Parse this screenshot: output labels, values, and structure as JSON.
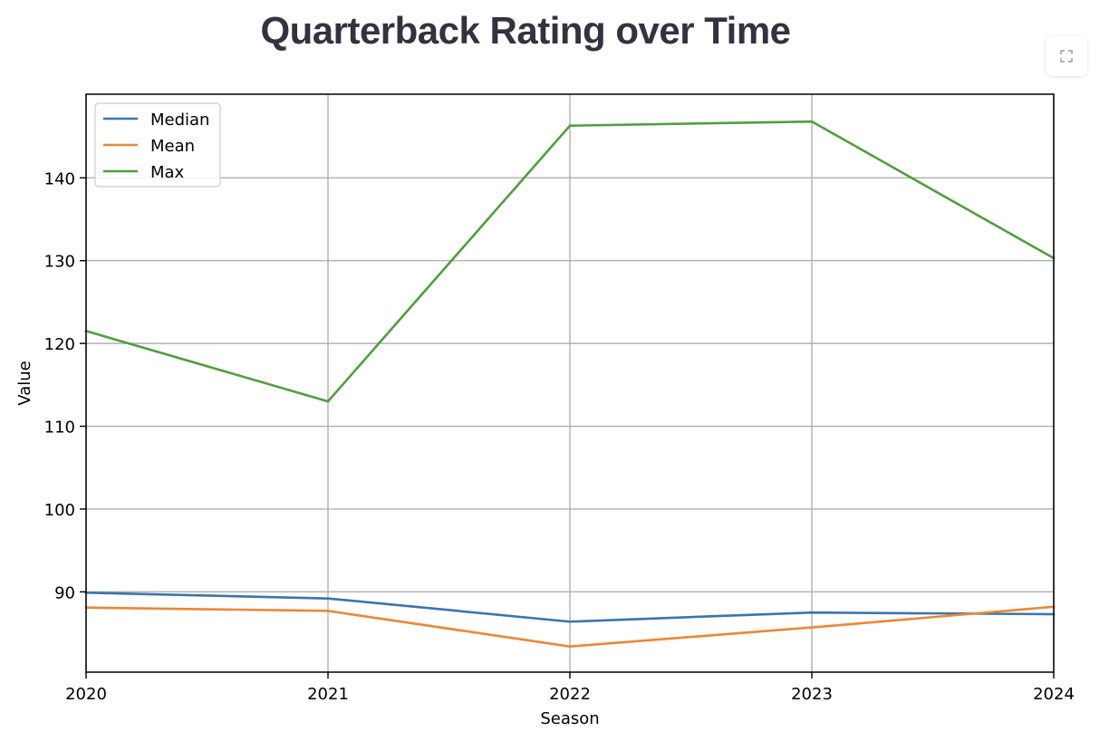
{
  "page": {
    "title": "Quarterback Rating over Time"
  },
  "toolbar": {
    "fullscreen_icon": "expand-icon"
  },
  "chart_data": {
    "type": "line",
    "title": "",
    "xlabel": "Season",
    "ylabel": "Value",
    "x": [
      2020,
      2021,
      2022,
      2023,
      2024
    ],
    "x_ticks": [
      "2020",
      "2021",
      "2022",
      "2023",
      "2024"
    ],
    "y_ticks": [
      "90",
      "100",
      "110",
      "120",
      "130",
      "140"
    ],
    "xlim": [
      2020,
      2024
    ],
    "ylim": [
      80.3,
      150.1
    ],
    "grid": true,
    "legend_position": "top-left",
    "series": [
      {
        "name": "Median",
        "color": "#3a75b0",
        "values": [
          89.9,
          89.2,
          86.4,
          87.5,
          87.3
        ]
      },
      {
        "name": "Mean",
        "color": "#ef8636",
        "values": [
          88.1,
          87.7,
          83.4,
          85.7,
          88.2
        ]
      },
      {
        "name": "Max",
        "color": "#519e3e",
        "values": [
          121.5,
          113.0,
          146.3,
          146.8,
          130.3
        ]
      }
    ]
  }
}
